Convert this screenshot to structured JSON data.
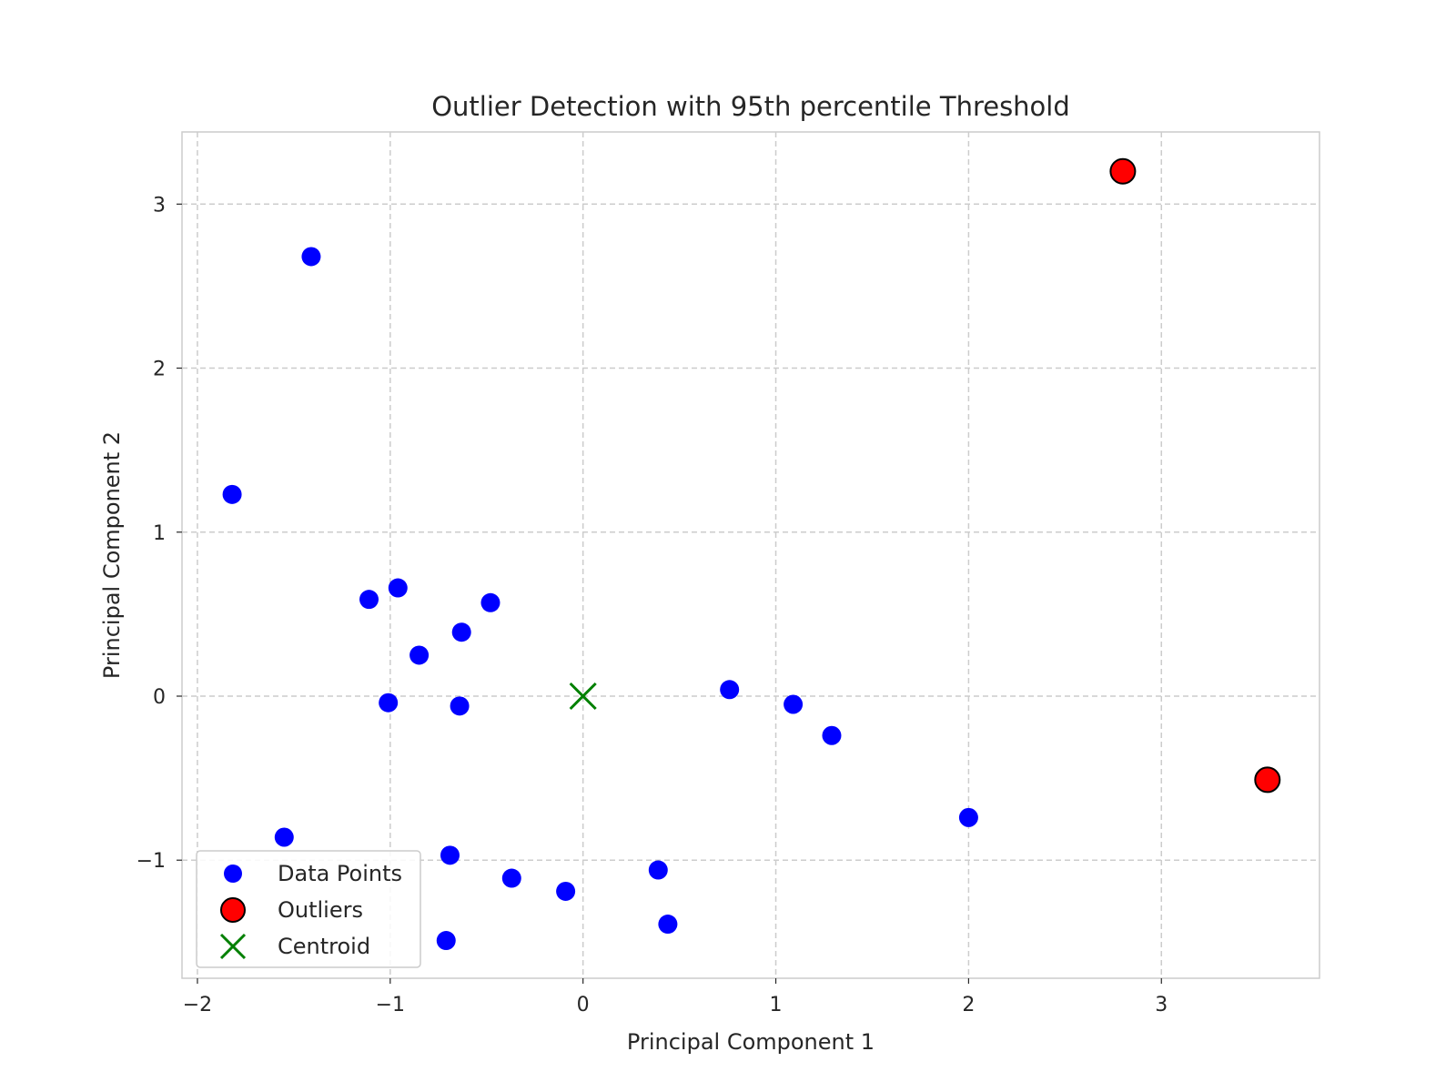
{
  "chart_data": {
    "type": "scatter",
    "title": "Outlier Detection with 95th percentile Threshold",
    "xlabel": "Principal Component 1",
    "ylabel": "Principal Component 2",
    "xlim": [
      -2.08,
      3.82
    ],
    "ylim": [
      -1.72,
      3.44
    ],
    "xticks": [
      -2,
      -1,
      0,
      1,
      2,
      3
    ],
    "xtick_labels": [
      "−2",
      "−1",
      "0",
      "1",
      "2",
      "3"
    ],
    "yticks": [
      -1,
      0,
      1,
      2,
      3
    ],
    "ytick_labels": [
      "−1",
      "0",
      "1",
      "2",
      "3"
    ],
    "grid": true,
    "legend_position": "lower-left",
    "series": [
      {
        "name": "Data Points",
        "marker": "circle",
        "color": "#0000ff",
        "points": [
          {
            "x": -1.41,
            "y": 2.68
          },
          {
            "x": -1.82,
            "y": 1.23
          },
          {
            "x": -1.11,
            "y": 0.59
          },
          {
            "x": -0.96,
            "y": 0.66
          },
          {
            "x": -0.48,
            "y": 0.57
          },
          {
            "x": -0.63,
            "y": 0.39
          },
          {
            "x": -0.85,
            "y": 0.25
          },
          {
            "x": -1.01,
            "y": -0.04
          },
          {
            "x": -0.64,
            "y": -0.06
          },
          {
            "x": 0.76,
            "y": 0.04
          },
          {
            "x": 1.09,
            "y": -0.05
          },
          {
            "x": 1.29,
            "y": -0.24
          },
          {
            "x": 2.0,
            "y": -0.74
          },
          {
            "x": -1.55,
            "y": -0.86
          },
          {
            "x": -0.69,
            "y": -0.97
          },
          {
            "x": -0.37,
            "y": -1.11
          },
          {
            "x": -0.09,
            "y": -1.19
          },
          {
            "x": 0.39,
            "y": -1.06
          },
          {
            "x": 0.44,
            "y": -1.39
          },
          {
            "x": -0.71,
            "y": -1.49
          }
        ]
      },
      {
        "name": "Outliers",
        "marker": "circle-outlined",
        "color": "#ff0000",
        "points": [
          {
            "x": 2.8,
            "y": 3.2
          },
          {
            "x": 3.55,
            "y": -0.51
          }
        ]
      },
      {
        "name": "Centroid",
        "marker": "x",
        "color": "#008000",
        "points": [
          {
            "x": 0.0,
            "y": 0.0
          }
        ]
      }
    ]
  }
}
